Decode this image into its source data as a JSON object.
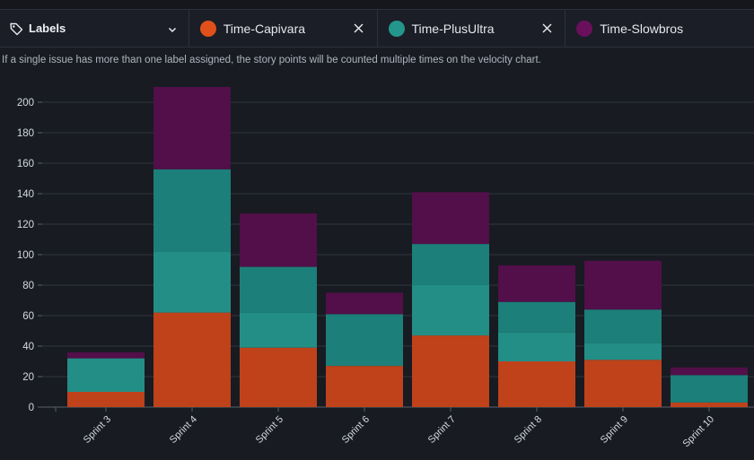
{
  "filters": {
    "labels_label": "Labels",
    "chips": [
      {
        "label": "Time-Capivara",
        "color": "#e0501b"
      },
      {
        "label": "Time-PlusUltra",
        "color": "#23978c"
      },
      {
        "label": "Time-Slowbros",
        "color": "#6a0f5c"
      }
    ]
  },
  "note": "If a single issue has more than one label assigned, the story points will be counted multiple times on the velocity chart.",
  "chart_data": {
    "type": "bar",
    "stacked": true,
    "categories": [
      "Sprint 3",
      "Sprint 4",
      "Sprint 5",
      "Sprint 6",
      "Sprint 7",
      "Sprint 8",
      "Sprint 9",
      "Sprint 10"
    ],
    "series": [
      {
        "values": [
          10,
          62,
          39,
          27,
          47,
          30,
          31,
          3
        ],
        "color": "#bf421b"
      },
      {
        "values": [
          22,
          40,
          23,
          0,
          33,
          19,
          11,
          0
        ],
        "color": "#238e86"
      },
      {
        "values": [
          0,
          54,
          30,
          34,
          27,
          20,
          22,
          18
        ],
        "color": "#1c7f79"
      },
      {
        "values": [
          4,
          54,
          35,
          14,
          34,
          24,
          32,
          5
        ],
        "color": "#520f49"
      }
    ],
    "ylim": [
      0,
      210
    ],
    "yticks": [
      0,
      20,
      40,
      60,
      80,
      100,
      120,
      140,
      160,
      180,
      200
    ],
    "grid": true
  }
}
